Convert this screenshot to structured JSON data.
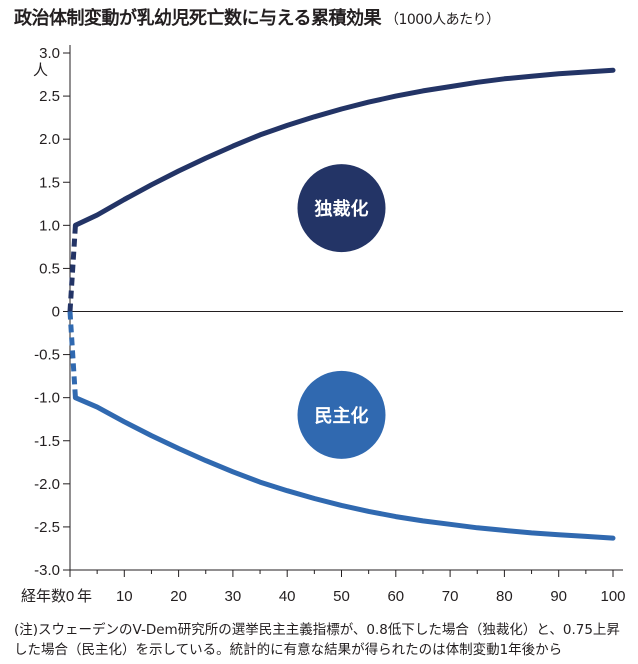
{
  "header": {
    "title": "政治体制変動が乳幼児死亡数に与える累積効果",
    "subtitle": "（1000人あたり）"
  },
  "chart_data": {
    "type": "line",
    "title": "政治体制変動が乳幼児死亡数に与える累積効果",
    "subtitle": "（1000人あたり）",
    "ylabel": "人",
    "xlabel": "経年数",
    "x_unit_label": "年",
    "ylim": [
      -3.0,
      3.0
    ],
    "xlim": [
      0,
      100
    ],
    "y_ticks": [
      "3.0",
      "2.5",
      "2.0",
      "1.5",
      "1.0",
      "0.5",
      "0",
      "-0.5",
      "-1.0",
      "-1.5",
      "-2.0",
      "-2.5",
      "-3.0"
    ],
    "x_ticks": [
      "0",
      "10",
      "20",
      "30",
      "40",
      "50",
      "60",
      "70",
      "80",
      "90",
      "100"
    ],
    "grid": false,
    "series": [
      {
        "name": "独裁化",
        "color": "#233466",
        "jump": {
          "x": [
            0,
            1
          ],
          "y": [
            0,
            1.0
          ]
        },
        "x": [
          1,
          5,
          10,
          15,
          20,
          25,
          30,
          35,
          40,
          45,
          50,
          55,
          60,
          65,
          70,
          75,
          80,
          85,
          90,
          95,
          100
        ],
        "y": [
          1.0,
          1.12,
          1.3,
          1.47,
          1.63,
          1.78,
          1.92,
          2.05,
          2.16,
          2.26,
          2.35,
          2.43,
          2.5,
          2.56,
          2.61,
          2.66,
          2.7,
          2.73,
          2.76,
          2.78,
          2.8
        ]
      },
      {
        "name": "民主化",
        "color": "#3069b0",
        "jump": {
          "x": [
            0,
            1
          ],
          "y": [
            0,
            -1.0
          ]
        },
        "x": [
          1,
          5,
          10,
          15,
          20,
          25,
          30,
          35,
          40,
          45,
          50,
          55,
          60,
          65,
          70,
          75,
          80,
          85,
          90,
          95,
          100
        ],
        "y": [
          -1.0,
          -1.11,
          -1.28,
          -1.44,
          -1.59,
          -1.73,
          -1.86,
          -1.98,
          -2.08,
          -2.17,
          -2.25,
          -2.32,
          -2.38,
          -2.43,
          -2.47,
          -2.51,
          -2.54,
          -2.57,
          -2.59,
          -2.61,
          -2.63
        ]
      }
    ]
  },
  "note": "(注)スウェーデンのV-Dem研究所の選挙民主主義指標が、0.8低下した場合（独裁化）と、0.75上昇した場合（民主化）を示している。統計的に有意な結果が得られたのは体制変動1年後から"
}
